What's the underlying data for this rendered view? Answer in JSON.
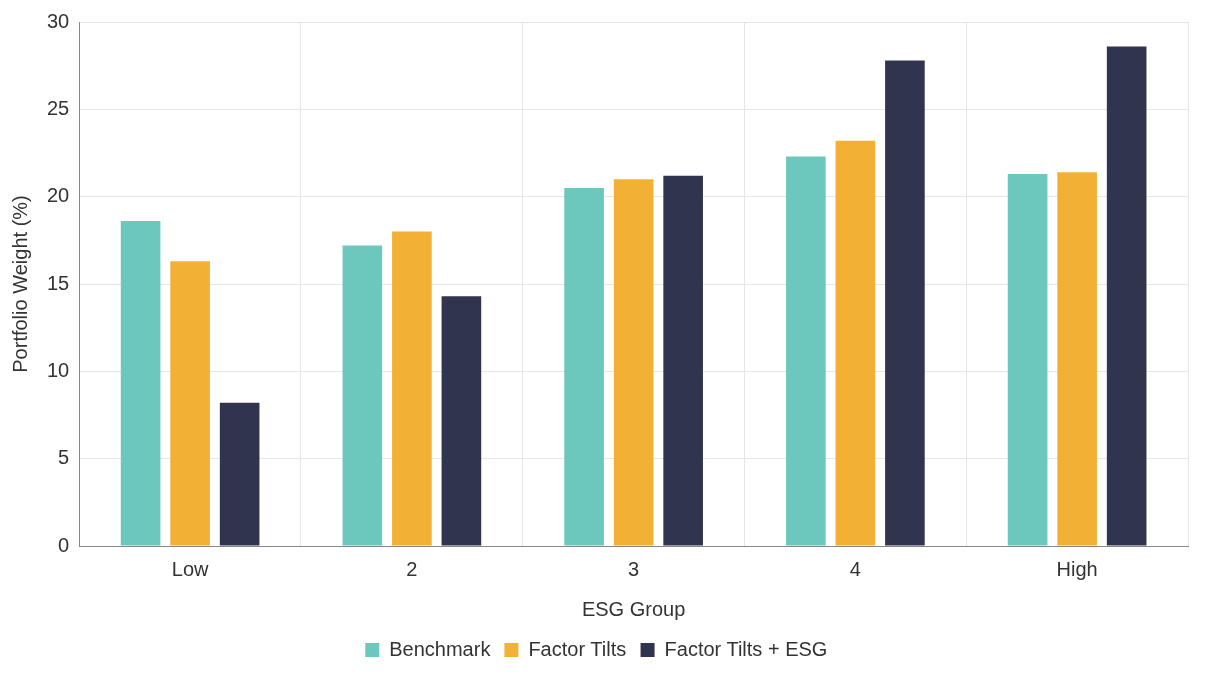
{
  "chart_data": {
    "type": "bar",
    "xlabel": "ESG Group",
    "ylabel": "Portfolio Weight (%)",
    "categories": [
      "Low",
      "2",
      "3",
      "4",
      "High"
    ],
    "series": [
      {
        "name": "Benchmark",
        "color": "#6cc7bd",
        "values": [
          18.6,
          17.2,
          20.5,
          22.3,
          21.3
        ]
      },
      {
        "name": "Factor Tilts",
        "color": "#f2b035",
        "values": [
          16.3,
          18.0,
          21.0,
          23.2,
          21.4
        ]
      },
      {
        "name": "Factor Tilts + ESG",
        "color": "#30344e",
        "values": [
          8.2,
          14.3,
          21.2,
          27.8,
          28.6
        ]
      }
    ],
    "ylim": [
      0,
      30
    ],
    "yticks": [
      0,
      5,
      10,
      15,
      20,
      25,
      30
    ],
    "grid": true,
    "legend": "bottom"
  }
}
